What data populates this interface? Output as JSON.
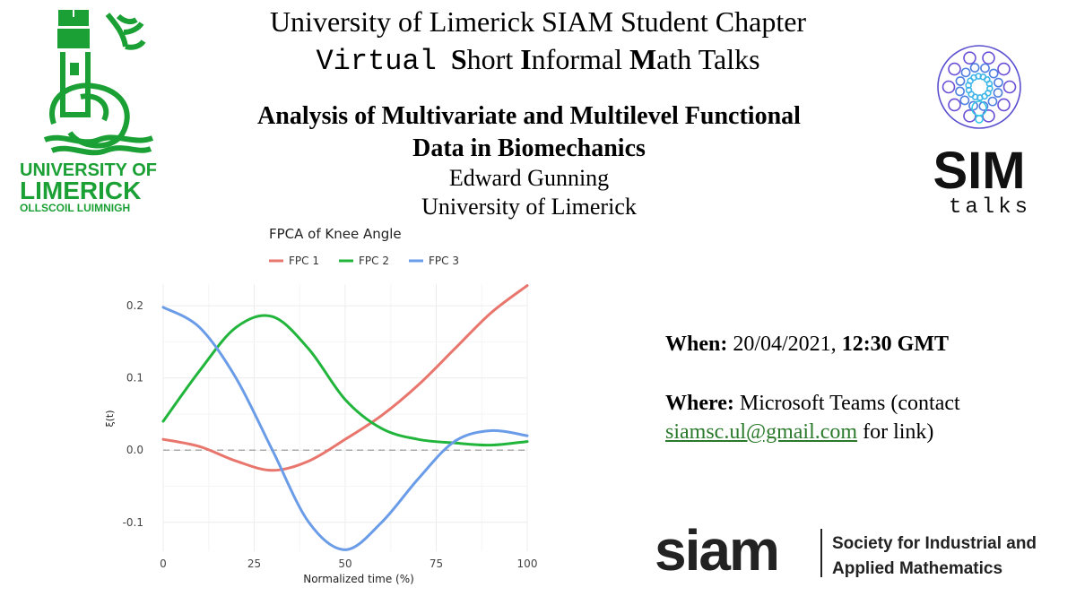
{
  "header": {
    "line1": "University of Limerick SIAM Student Chapter",
    "line2_prefix": "Virtual",
    "line2_parts": [
      {
        "bold": "S",
        "rest": "hort "
      },
      {
        "bold": "I",
        "rest": "nformal "
      },
      {
        "bold": "M",
        "rest": "ath Talks"
      }
    ]
  },
  "talk": {
    "title_line1": "Analysis of Multivariate and Multilevel Functional",
    "title_line2": "Data in Biomechanics",
    "speaker": "Edward Gunning",
    "affiliation": "University of Limerick"
  },
  "info": {
    "when_label": "When:",
    "when_date": "20/04/2021,",
    "when_time": "12:30 GMT",
    "where_label": "Where:",
    "where_text": "Microsoft Teams (contact",
    "email": "siamsc.ul@gmail.com",
    "where_suffix": "for link)"
  },
  "logos": {
    "ul_line1": "UNIVERSITY OF",
    "ul_line2": "LIMERICK",
    "ul_line3": "OLLSCOIL LUIMNIGH",
    "sim_main": "SIM",
    "sim_sub": "talks",
    "siam_mark": "siam",
    "siam_line1": "Society for Industrial and",
    "siam_line2": "Applied Mathematics",
    "ul_green": "#1aa034",
    "siam_dark": "#222222"
  },
  "chart_data": {
    "type": "line",
    "title": "FPCA of Knee Angle",
    "xlabel": "Normalized time (%)",
    "ylabel": "ξ(t)",
    "xlim": [
      0,
      100
    ],
    "ylim": [
      -0.14,
      0.23
    ],
    "xticks": [
      "0",
      "25",
      "50",
      "75",
      "100"
    ],
    "yticks": [
      "0.2",
      "0.1",
      "0.0",
      "-0.1"
    ],
    "grid": true,
    "legend_position": "top",
    "zero_line": true,
    "series": [
      {
        "name": "FPC 1",
        "color": "#e8766d",
        "x": [
          0,
          10,
          20,
          30,
          40,
          50,
          60,
          70,
          80,
          90,
          100
        ],
        "y": [
          0.015,
          0.005,
          -0.015,
          -0.028,
          -0.015,
          0.015,
          0.048,
          0.09,
          0.14,
          0.19,
          0.228
        ]
      },
      {
        "name": "FPC 2",
        "color": "#21b53c",
        "x": [
          0,
          10,
          20,
          30,
          40,
          50,
          60,
          70,
          80,
          90,
          100
        ],
        "y": [
          0.04,
          0.11,
          0.17,
          0.185,
          0.14,
          0.07,
          0.03,
          0.015,
          0.01,
          0.007,
          0.012
        ]
      },
      {
        "name": "FPC 3",
        "color": "#6a9ce8",
        "x": [
          0,
          10,
          20,
          30,
          40,
          50,
          60,
          70,
          80,
          90,
          100
        ],
        "y": [
          0.198,
          0.17,
          0.1,
          0.0,
          -0.1,
          -0.138,
          -0.1,
          -0.04,
          0.012,
          0.027,
          0.02
        ]
      }
    ]
  }
}
